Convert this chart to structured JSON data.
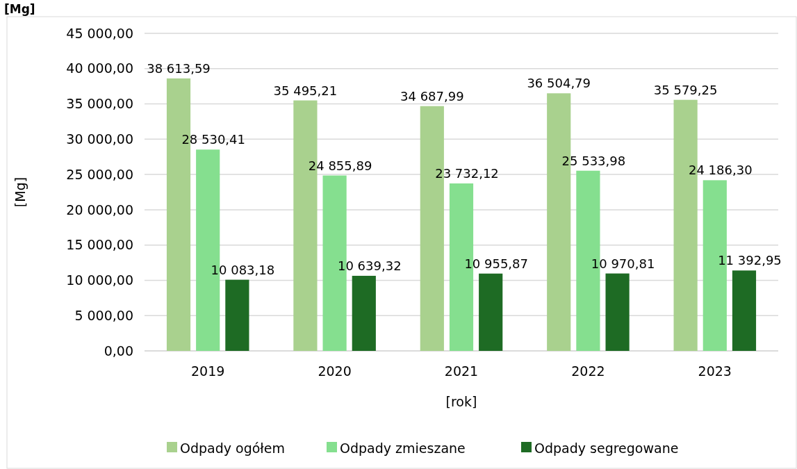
{
  "chart_data": {
    "type": "bar",
    "title": "[Mg]",
    "xlabel": "[rok]",
    "ylabel": "[Mg]",
    "categories": [
      "2019",
      "2020",
      "2021",
      "2022",
      "2023"
    ],
    "series": [
      {
        "name": "Odpady ogółem",
        "color": "#a9d18e",
        "values": [
          38613.59,
          35495.21,
          34687.99,
          36504.79,
          35579.25
        ],
        "value_labels": [
          "38 613,59",
          "35 495,21",
          "34 687,99",
          "36 504,79",
          "35 579,25"
        ]
      },
      {
        "name": "Odpady zmieszane",
        "color": "#85df8f",
        "values": [
          28530.41,
          24855.89,
          23732.12,
          25533.98,
          24186.3
        ],
        "value_labels": [
          "28 530,41",
          "24 855,89",
          "23 732,12",
          "25 533,98",
          "24 186,30"
        ]
      },
      {
        "name": "Odpady segregowane",
        "color": "#1e6b24",
        "values": [
          10083.18,
          10639.32,
          10955.87,
          10970.81,
          11392.95
        ],
        "value_labels": [
          "10 083,18",
          "10 639,32",
          "10 955,87",
          "10 970,81",
          "11 392,95"
        ]
      }
    ],
    "ylim": [
      0,
      45000
    ],
    "yticks": [
      {
        "value": 0,
        "label": "0,00"
      },
      {
        "value": 5000,
        "label": "5 000,00"
      },
      {
        "value": 10000,
        "label": "10 000,00"
      },
      {
        "value": 15000,
        "label": "15 000,00"
      },
      {
        "value": 20000,
        "label": "20 000,00"
      },
      {
        "value": 25000,
        "label": "25 000,00"
      },
      {
        "value": 30000,
        "label": "30 000,00"
      },
      {
        "value": 35000,
        "label": "35 000,00"
      },
      {
        "value": 40000,
        "label": "40 000,00"
      },
      {
        "value": 45000,
        "label": "45 000,00"
      }
    ],
    "grid": "y",
    "legend": "bottom"
  }
}
